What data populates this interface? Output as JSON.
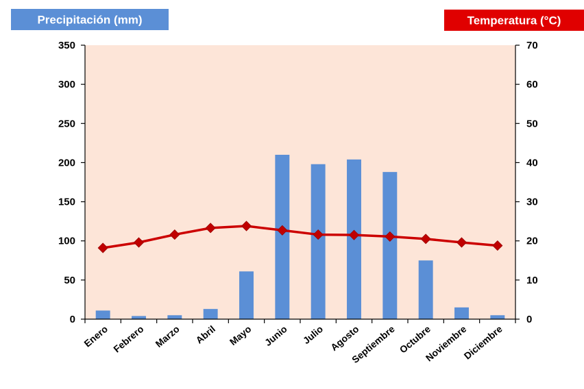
{
  "chart_data": {
    "type": "bar",
    "categories": [
      "Enero",
      "Febrero",
      "Marzo",
      "Abril",
      "Mayo",
      "Junio",
      "Julio",
      "Agosto",
      "Septiembre",
      "Octubre",
      "Noviembre",
      "Diciembre"
    ],
    "series": [
      {
        "name": "Precipitación (mm)",
        "type": "bar",
        "axis": "left",
        "color": "#5b8fd6",
        "values": [
          11,
          4,
          5,
          13,
          61,
          210,
          198,
          204,
          188,
          75,
          15,
          5
        ]
      },
      {
        "name": "Temperatura (°C)",
        "type": "line",
        "axis": "right",
        "color": "#cc0000",
        "marker": "diamond",
        "values": [
          18.2,
          19.6,
          21.6,
          23.3,
          23.8,
          22.7,
          21.6,
          21.5,
          21.1,
          20.5,
          19.6,
          18.8
        ]
      }
    ],
    "left_axis": {
      "label": "Precipitación (mm)",
      "range": [
        0,
        350
      ],
      "ticks": [
        "0",
        "50",
        "100",
        "150",
        "200",
        "250",
        "300",
        "350"
      ],
      "badge_color": "#5b8fd6"
    },
    "right_axis": {
      "label": "Temperatura (°C)",
      "range": [
        0,
        70
      ],
      "ticks": [
        "0",
        "10",
        "20",
        "30",
        "40",
        "50",
        "60",
        "70"
      ],
      "badge_color": "#e00000"
    },
    "plot_background": "#fde5d8",
    "grid": false,
    "legend": "none"
  }
}
